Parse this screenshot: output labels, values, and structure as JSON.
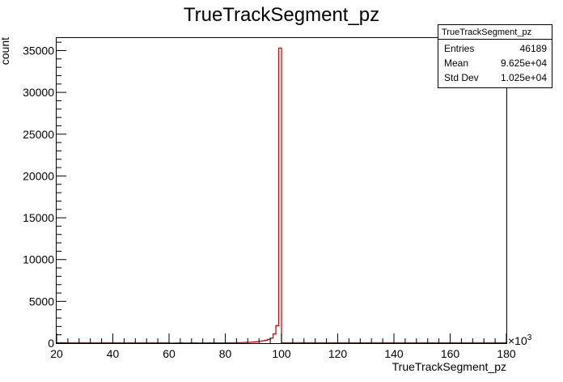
{
  "chart_data": {
    "type": "bar",
    "title": "TrueTrackSegment_pz",
    "xlabel": "TrueTrackSegment_pz",
    "ylabel": "count",
    "x_multiplier_label": "×10",
    "x_multiplier_exponent": "3",
    "xlim": [
      20,
      180
    ],
    "ylim": [
      0,
      36500
    ],
    "x_ticks": [
      "20",
      "40",
      "60",
      "80",
      "100",
      "120",
      "140",
      "160",
      "180"
    ],
    "y_ticks": [
      "0",
      "5000",
      "10000",
      "15000",
      "20000",
      "25000",
      "30000",
      "35000"
    ],
    "bin_width": 1,
    "bins": [
      {
        "x": 60,
        "value": 15
      },
      {
        "x": 65,
        "value": 20
      },
      {
        "x": 70,
        "value": 25
      },
      {
        "x": 75,
        "value": 35
      },
      {
        "x": 80,
        "value": 45
      },
      {
        "x": 82,
        "value": 50
      },
      {
        "x": 84,
        "value": 60
      },
      {
        "x": 86,
        "value": 75
      },
      {
        "x": 87,
        "value": 90
      },
      {
        "x": 88,
        "value": 100
      },
      {
        "x": 89,
        "value": 120
      },
      {
        "x": 90,
        "value": 150
      },
      {
        "x": 91,
        "value": 180
      },
      {
        "x": 92,
        "value": 220
      },
      {
        "x": 93,
        "value": 280
      },
      {
        "x": 94,
        "value": 350
      },
      {
        "x": 95,
        "value": 450
      },
      {
        "x": 96,
        "value": 600
      },
      {
        "x": 97,
        "value": 1100
      },
      {
        "x": 98,
        "value": 2100
      },
      {
        "x": 99,
        "value": 35300
      }
    ],
    "line_color": "#e00000",
    "stats": {
      "name": "TrueTrackSegment_pz",
      "rows": [
        {
          "label": "Entries",
          "value": "46189"
        },
        {
          "label": "Mean",
          "value": "9.625e+04"
        },
        {
          "label": "Std Dev",
          "value": "1.025e+04"
        }
      ]
    }
  }
}
